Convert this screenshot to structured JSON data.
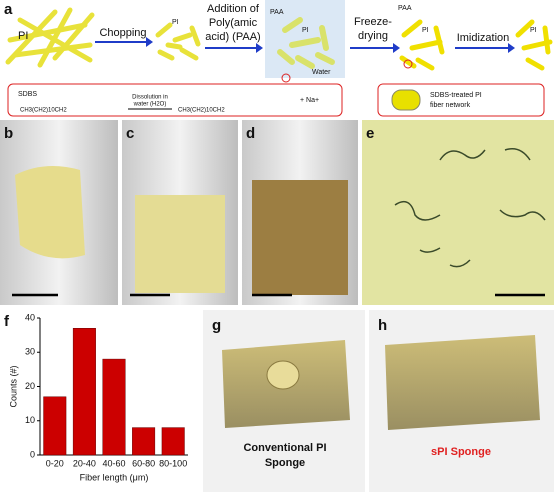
{
  "scheme": {
    "label": "a",
    "pi_labels": [
      "PI",
      "PI",
      "PI",
      "PI",
      "PI"
    ],
    "paa_labels": [
      "PAA",
      "PAA"
    ],
    "water": "Water",
    "steps": [
      "Chopping",
      [
        "Addition of",
        "Poly(amic",
        "acid) (PAA)"
      ],
      [
        "Freeze-",
        "drying"
      ],
      "Imidization"
    ],
    "sdbs": {
      "name": "SDBS",
      "formula_left": "CH3(CH2)10CH2",
      "dissolution": [
        "Dissolution in",
        "water (H2O)"
      ],
      "formula_right": "CH3(CH2)10CH2",
      "sodium": "+  Na+"
    },
    "result": [
      "SDBS-treated PI",
      "fiber network"
    ]
  },
  "panel_labels": [
    "b",
    "c",
    "d",
    "e",
    "f",
    "g",
    "h"
  ],
  "chart_data": {
    "type": "bar",
    "categories": [
      "0-20",
      "20-40",
      "40-60",
      "60-80",
      "80-100"
    ],
    "values": [
      17,
      37,
      28,
      8,
      8
    ],
    "color": "#cc0000",
    "x_label": "Fiber length (μm)",
    "y_label": "Counts (#)",
    "ylim": [
      0,
      40
    ],
    "yticks": [
      0,
      10,
      20,
      30,
      40
    ]
  },
  "captions": [
    [
      "Conventional PI",
      "Sponge"
    ],
    "sPI Sponge"
  ]
}
